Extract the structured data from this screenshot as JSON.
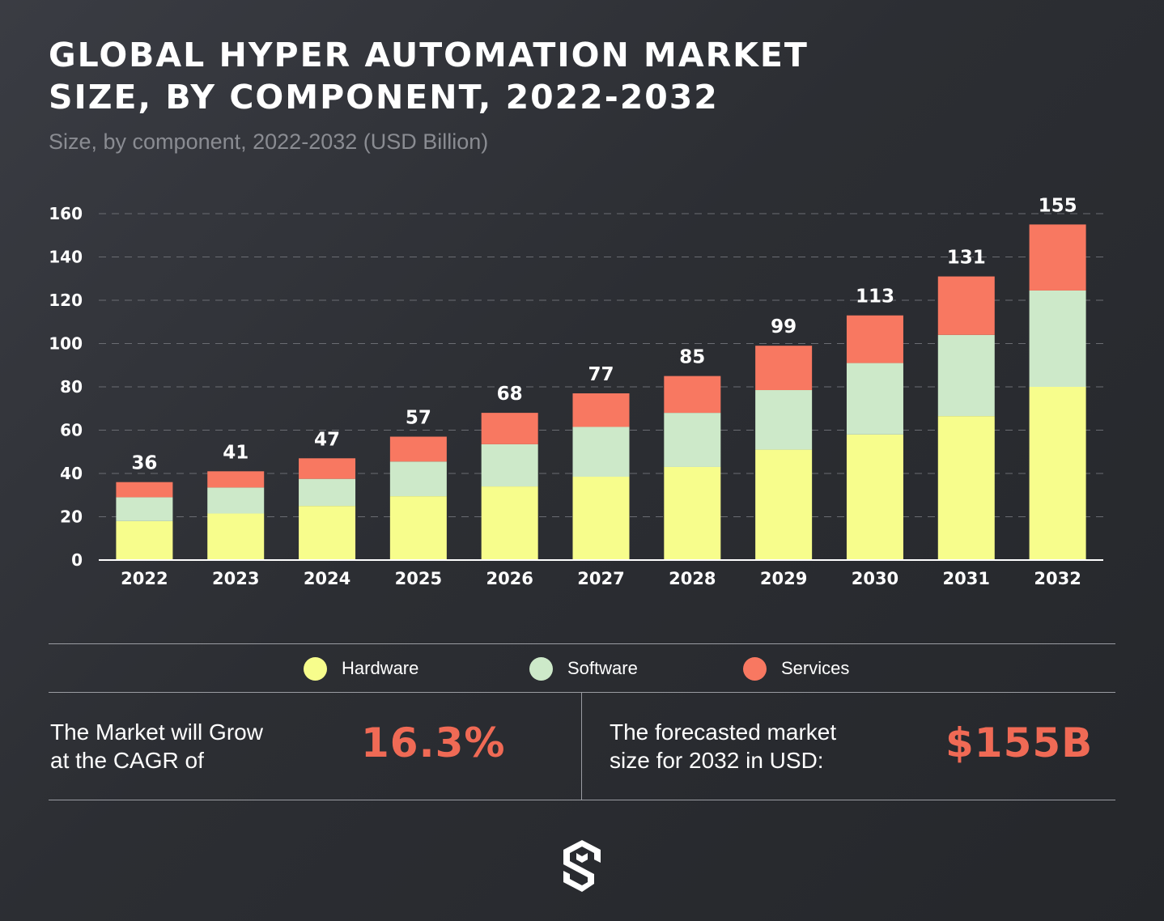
{
  "header": {
    "title_line1": "GLOBAL HYPER AUTOMATION MARKET",
    "title_line2": "SIZE, BY COMPONENT, 2022-2032",
    "subtitle": "Size, by component, 2022-2032 (USD Billion)"
  },
  "chart_data": {
    "type": "bar",
    "stacked": true,
    "categories": [
      "2022",
      "2023",
      "2024",
      "2025",
      "2026",
      "2027",
      "2028",
      "2029",
      "2030",
      "2031",
      "2032"
    ],
    "series": [
      {
        "name": "Hardware",
        "color": "#f7fd8c",
        "values": [
          18,
          21.5,
          25,
          29.5,
          34,
          38.5,
          43,
          51,
          58,
          66.5,
          80
        ]
      },
      {
        "name": "Software",
        "color": "#cde9c9",
        "values": [
          11,
          12,
          12.5,
          16,
          19.5,
          23,
          25,
          27.5,
          33,
          37.5,
          44.5
        ]
      },
      {
        "name": "Services",
        "color": "#f87861",
        "values": [
          7,
          7.5,
          9.5,
          11.5,
          14.5,
          15.5,
          17,
          20.5,
          22,
          27,
          30.5
        ]
      }
    ],
    "totals": [
      "36",
      "41",
      "47",
      "57",
      "68",
      "77",
      "85",
      "99",
      "113",
      "131",
      "155"
    ],
    "yticks": [
      "0",
      "20",
      "40",
      "60",
      "80",
      "100",
      "120",
      "140",
      "160"
    ],
    "ylim": [
      0,
      160
    ],
    "grid": true,
    "legend_position": "bottom"
  },
  "stats": {
    "cagr_label_line1": "The Market will Grow",
    "cagr_label_line2": "at the CAGR of",
    "cagr_value": "16.3%",
    "forecast_label_line1": "The forecasted market",
    "forecast_label_line2": "size for 2032 in USD:",
    "forecast_value": "$155B"
  },
  "colors": {
    "accent": "#f06a55",
    "background": "#2e3035"
  },
  "logo": {
    "icon": "ms-logo-icon"
  }
}
